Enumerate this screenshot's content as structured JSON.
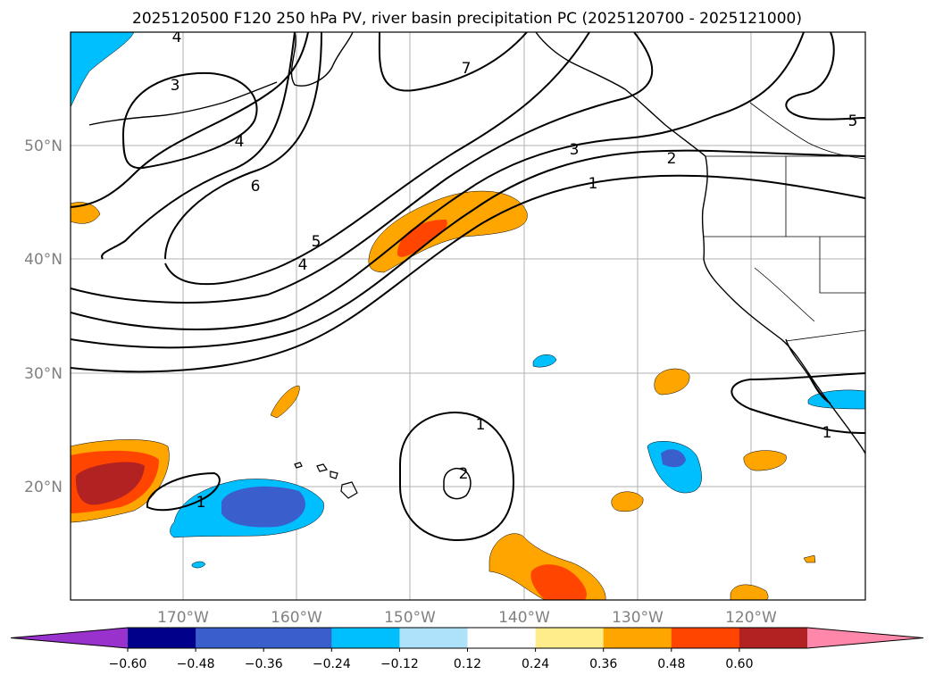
{
  "title": "2025120500 F120 250 hPa PV, river basin precipitation PC (2025120700 - 2025121000)",
  "map": {
    "lat_labels": [
      "50°N",
      "40°N",
      "30°N",
      "20°N"
    ],
    "lon_labels": [
      "170°W",
      "160°W",
      "150°W",
      "140°W",
      "130°W",
      "120°W"
    ],
    "contour_labels": [
      "4",
      "3",
      "7",
      "4",
      "6",
      "5",
      "4",
      "3",
      "2",
      "1",
      "5",
      "1",
      "1",
      "2",
      "1"
    ],
    "fill_colors": {
      "neg_036": "#3a5fcd",
      "neg_024": "#00bfff",
      "pos_024": "#ffa500",
      "pos_036": "#ff4500",
      "pos_048": "#b22222"
    }
  },
  "colorbar": {
    "colors": [
      "#9932cc",
      "#00008b",
      "#3a5fcd",
      "#3a5fcd",
      "#00bfff",
      "#aee2fa",
      "#ffffff",
      "#ffec8b",
      "#ffa500",
      "#ff4500",
      "#b22222",
      "#ff88aa"
    ],
    "tick_labels": [
      "−0.60",
      "−0.48",
      "−0.36",
      "−0.24",
      "−0.12",
      "0.12",
      "0.24",
      "0.36",
      "0.48",
      "0.60"
    ]
  }
}
